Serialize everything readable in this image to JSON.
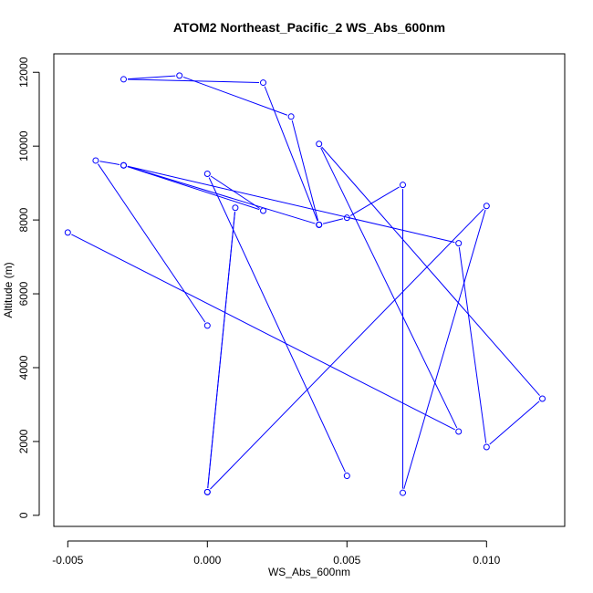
{
  "chart_data": {
    "type": "line",
    "title": "ATOM2 Northeast_Pacific_2 WS_Abs_600nm",
    "xlabel": "WS_Abs_600nm",
    "ylabel": "Altitude (m)",
    "xlim": [
      -0.0055,
      0.0128
    ],
    "ylim": [
      -300,
      12500
    ],
    "xticks": [
      -0.005,
      0.0,
      0.005,
      0.01
    ],
    "xtick_labels": [
      "-0.005",
      "0.000",
      "0.005",
      "0.010"
    ],
    "yticks": [
      0,
      2000,
      4000,
      6000,
      8000,
      10000,
      12000
    ],
    "ytick_labels": [
      "0",
      "2000",
      "4000",
      "6000",
      "8000",
      "10000",
      "12000"
    ],
    "grid": false,
    "markers": "open-circle",
    "series": [
      {
        "color": "#0000ff",
        "points": [
          {
            "x": 0.005,
            "y": 1070
          },
          {
            "x": 0.0,
            "y": 9250
          },
          {
            "x": 0.002,
            "y": 8250
          },
          {
            "x": -0.003,
            "y": 9480
          },
          {
            "x": 0.004,
            "y": 7870
          },
          {
            "x": 0.002,
            "y": 11720
          },
          {
            "x": -0.003,
            "y": 11810
          },
          {
            "x": -0.001,
            "y": 11910
          },
          {
            "x": 0.003,
            "y": 10800
          },
          {
            "x": 0.004,
            "y": 7870
          },
          {
            "x": 0.004,
            "y": 7870
          },
          {
            "x": 0.005,
            "y": 8060
          },
          {
            "x": 0.007,
            "y": 8950
          },
          {
            "x": 0.007,
            "y": 610
          },
          {
            "x": 0.01,
            "y": 8380
          },
          {
            "x": 0.0,
            "y": 630
          },
          {
            "x": 0.001,
            "y": 8330
          },
          {
            "x": 0.0,
            "y": 630
          }
        ]
      },
      {
        "color": "#0000ff",
        "points": [
          {
            "x": 0.0,
            "y": 5140
          },
          {
            "x": -0.004,
            "y": 9610
          },
          {
            "x": -0.003,
            "y": 9480
          },
          {
            "x": 0.009,
            "y": 7370
          },
          {
            "x": 0.01,
            "y": 1850
          },
          {
            "x": 0.012,
            "y": 3160
          },
          {
            "x": 0.004,
            "y": 10060
          },
          {
            "x": 0.009,
            "y": 2270
          },
          {
            "x": -0.005,
            "y": 7660
          }
        ]
      }
    ]
  }
}
